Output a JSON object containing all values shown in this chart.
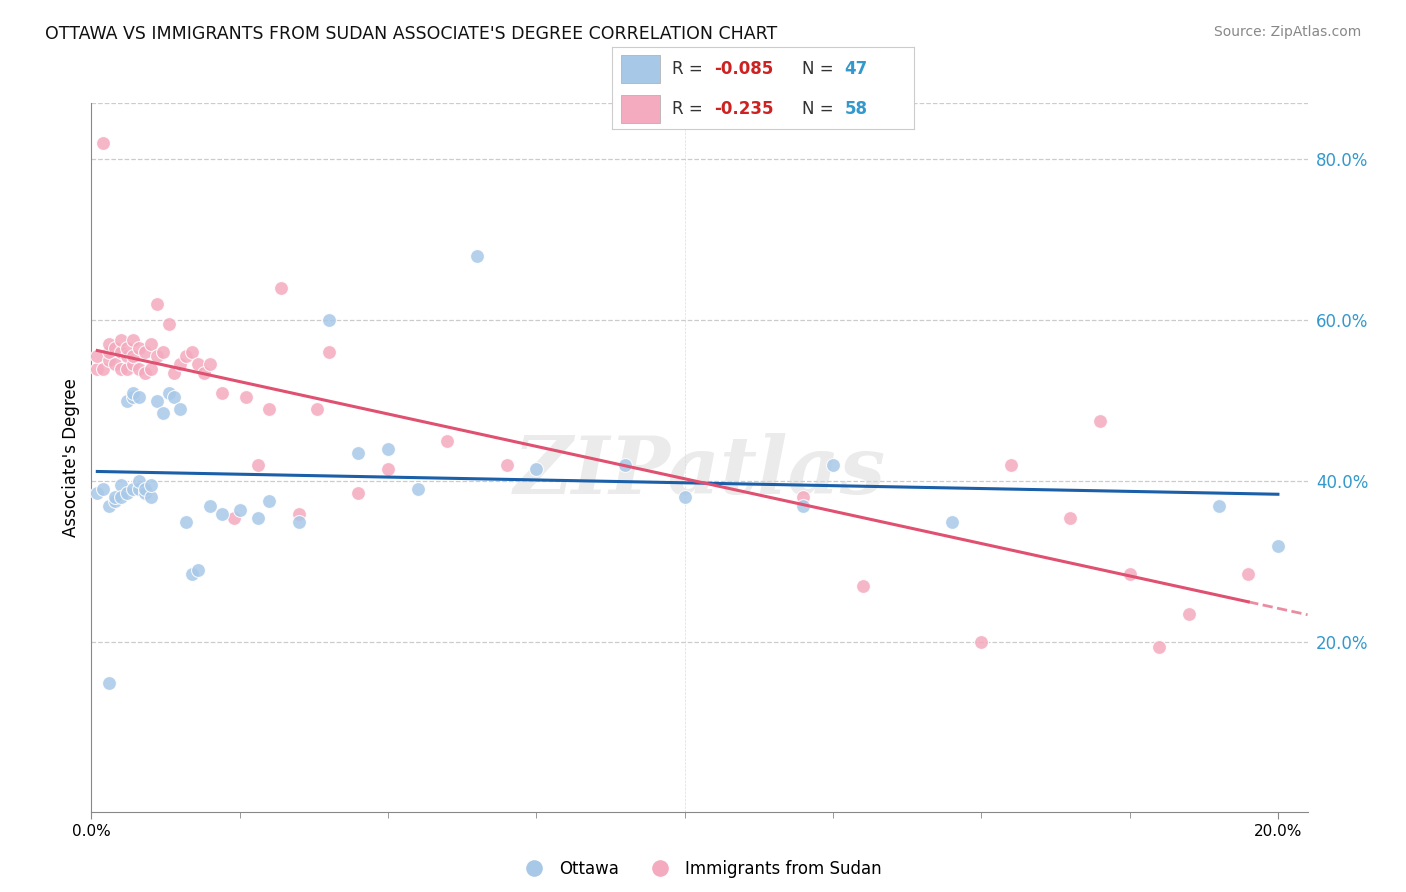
{
  "title": "OTTAWA VS IMMIGRANTS FROM SUDAN ASSOCIATE'S DEGREE CORRELATION CHART",
  "source": "Source: ZipAtlas.com",
  "ylabel": "Associate's Degree",
  "xlim": [
    0.0,
    0.205
  ],
  "ylim": [
    -0.01,
    0.87
  ],
  "ytick_positions": [
    0.2,
    0.4,
    0.6,
    0.8
  ],
  "ytick_labels": [
    "20.0%",
    "40.0%",
    "60.0%",
    "80.0%"
  ],
  "r1": "-0.085",
  "n1": "47",
  "r2": "-0.235",
  "n2": "58",
  "watermark": "ZIPatlas",
  "blue_scatter": "#a8c8e8",
  "pink_scatter": "#f4aabf",
  "blue_line": "#1a5fa8",
  "pink_line": "#e05070",
  "ottawa_x": [
    0.001,
    0.002,
    0.003,
    0.003,
    0.004,
    0.004,
    0.005,
    0.005,
    0.006,
    0.006,
    0.007,
    0.007,
    0.007,
    0.008,
    0.008,
    0.008,
    0.009,
    0.009,
    0.01,
    0.01,
    0.011,
    0.012,
    0.013,
    0.014,
    0.015,
    0.016,
    0.017,
    0.018,
    0.02,
    0.022,
    0.025,
    0.028,
    0.03,
    0.035,
    0.04,
    0.045,
    0.05,
    0.055,
    0.065,
    0.075,
    0.09,
    0.1,
    0.12,
    0.125,
    0.145,
    0.19,
    0.2
  ],
  "ottawa_y": [
    0.385,
    0.39,
    0.37,
    0.15,
    0.375,
    0.38,
    0.395,
    0.38,
    0.385,
    0.5,
    0.39,
    0.505,
    0.51,
    0.39,
    0.4,
    0.505,
    0.385,
    0.39,
    0.38,
    0.395,
    0.5,
    0.485,
    0.51,
    0.505,
    0.49,
    0.35,
    0.285,
    0.29,
    0.37,
    0.36,
    0.365,
    0.355,
    0.375,
    0.35,
    0.6,
    0.435,
    0.44,
    0.39,
    0.68,
    0.415,
    0.42,
    0.38,
    0.37,
    0.42,
    0.35,
    0.37,
    0.32
  ],
  "sudan_x": [
    0.001,
    0.001,
    0.002,
    0.002,
    0.003,
    0.003,
    0.003,
    0.004,
    0.004,
    0.005,
    0.005,
    0.005,
    0.006,
    0.006,
    0.006,
    0.007,
    0.007,
    0.007,
    0.008,
    0.008,
    0.009,
    0.009,
    0.01,
    0.01,
    0.011,
    0.011,
    0.012,
    0.013,
    0.014,
    0.015,
    0.016,
    0.017,
    0.018,
    0.019,
    0.02,
    0.022,
    0.024,
    0.026,
    0.028,
    0.03,
    0.032,
    0.035,
    0.038,
    0.04,
    0.045,
    0.05,
    0.06,
    0.07,
    0.12,
    0.13,
    0.15,
    0.155,
    0.165,
    0.17,
    0.175,
    0.18,
    0.185,
    0.195
  ],
  "sudan_y": [
    0.54,
    0.555,
    0.54,
    0.82,
    0.55,
    0.56,
    0.57,
    0.545,
    0.565,
    0.54,
    0.56,
    0.575,
    0.54,
    0.555,
    0.565,
    0.545,
    0.555,
    0.575,
    0.54,
    0.565,
    0.535,
    0.56,
    0.54,
    0.57,
    0.555,
    0.62,
    0.56,
    0.595,
    0.535,
    0.545,
    0.555,
    0.56,
    0.545,
    0.535,
    0.545,
    0.51,
    0.355,
    0.505,
    0.42,
    0.49,
    0.64,
    0.36,
    0.49,
    0.56,
    0.385,
    0.415,
    0.45,
    0.42,
    0.38,
    0.27,
    0.2,
    0.42,
    0.355,
    0.475,
    0.285,
    0.195,
    0.235,
    0.285
  ],
  "grid_color": "#cccccc",
  "grid_style": "--",
  "spine_color": "#888888"
}
